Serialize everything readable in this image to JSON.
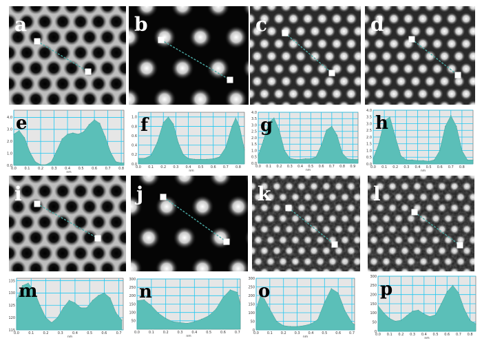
{
  "colors": {
    "plot_fill": "#5bbfb8",
    "plot_background": "#e6e6e6",
    "grid": "#1fc7f0",
    "image_marker": "#ffffff",
    "image_line": "#4aa9a4"
  },
  "image_panels": [
    {
      "label": "a",
      "pattern": "dark-pores-honeycomb"
    },
    {
      "label": "b",
      "pattern": "bright-spots-sparse"
    },
    {
      "label": "c",
      "pattern": "bright-spots-dense"
    },
    {
      "label": "d",
      "pattern": "bright-spots-dense"
    },
    {
      "label": "i",
      "pattern": "dark-pores-honeycomb"
    },
    {
      "label": "j",
      "pattern": "bright-spots-sparse"
    },
    {
      "label": "k",
      "pattern": "noisy-bright-spots"
    },
    {
      "label": "l",
      "pattern": "noisy-bright-spots"
    }
  ],
  "chart_data": [
    {
      "label": "e",
      "type": "area",
      "xlabel": "nm",
      "xticks": [
        "0.0",
        "0.1",
        "0.2",
        "0.3",
        "0.4",
        "0.5",
        "0.6",
        "0.7",
        "0.8"
      ],
      "yticks": [
        "0.0",
        "1.0",
        "2.0",
        "3.0",
        "4.0"
      ],
      "xlim": [
        0,
        0.82
      ],
      "ylim": [
        0,
        4.6
      ],
      "x": [
        0.0,
        0.04,
        0.08,
        0.12,
        0.16,
        0.2,
        0.24,
        0.28,
        0.32,
        0.36,
        0.4,
        0.44,
        0.48,
        0.52,
        0.56,
        0.6,
        0.64,
        0.68,
        0.72,
        0.76,
        0.8,
        0.82
      ],
      "y": [
        2.6,
        2.9,
        2.3,
        1.1,
        0.3,
        0.05,
        0.05,
        0.3,
        1.2,
        2.2,
        2.6,
        2.7,
        2.6,
        2.8,
        3.4,
        3.8,
        3.5,
        2.4,
        1.1,
        0.3,
        0.2,
        0.2
      ]
    },
    {
      "label": "f",
      "type": "area",
      "xlabel": "nm",
      "xticks": [
        "0.0",
        "0.1",
        "0.2",
        "0.3",
        "0.4",
        "0.5",
        "0.6",
        "0.7",
        "0.8"
      ],
      "yticks": [
        "0.0",
        "0.2",
        "0.4",
        "0.6",
        "0.8",
        "1.0"
      ],
      "xlim": [
        0,
        0.85
      ],
      "ylim": [
        0,
        1.1
      ],
      "x": [
        0.0,
        0.05,
        0.1,
        0.15,
        0.2,
        0.24,
        0.28,
        0.32,
        0.36,
        0.4,
        0.45,
        0.5,
        0.55,
        0.6,
        0.65,
        0.7,
        0.75,
        0.78,
        0.81,
        0.85
      ],
      "y": [
        0.12,
        0.12,
        0.18,
        0.45,
        0.88,
        1.0,
        0.85,
        0.45,
        0.2,
        0.12,
        0.1,
        0.1,
        0.1,
        0.11,
        0.15,
        0.35,
        0.8,
        0.98,
        0.8,
        0.3
      ]
    },
    {
      "label": "g",
      "type": "area",
      "xlabel": "nm",
      "xticks": [
        "0.0",
        "0.1",
        "0.2",
        "0.3",
        "0.4",
        "0.5",
        "0.6",
        "0.7",
        "0.8",
        "0.9"
      ],
      "yticks": [
        "0.0",
        "0.5",
        "1.0",
        "1.5",
        "2.0",
        "2.5",
        "3.0",
        "3.5",
        "4.0"
      ],
      "xlim": [
        0,
        0.95
      ],
      "ylim": [
        0,
        4.0
      ],
      "x": [
        0.0,
        0.05,
        0.1,
        0.15,
        0.2,
        0.25,
        0.3,
        0.35,
        0.4,
        0.45,
        0.5,
        0.55,
        0.6,
        0.65,
        0.7,
        0.75,
        0.8,
        0.85,
        0.9,
        0.95
      ],
      "y": [
        0.6,
        1.8,
        3.2,
        3.55,
        2.6,
        1.0,
        0.4,
        0.3,
        0.3,
        0.35,
        0.35,
        0.5,
        1.4,
        2.6,
        2.9,
        2.2,
        0.8,
        0.35,
        0.3,
        0.3
      ]
    },
    {
      "label": "h",
      "type": "area",
      "xlabel": "nm",
      "xticks": [
        "0.0",
        "0.1",
        "0.2",
        "0.3",
        "0.4",
        "0.5",
        "0.6",
        "0.7",
        "0.8"
      ],
      "yticks": [
        "0.0",
        "0.5",
        "1.0",
        "1.5",
        "2.0",
        "2.5",
        "3.0",
        "3.5",
        "4.0"
      ],
      "xlim": [
        0,
        0.9
      ],
      "ylim": [
        0,
        4.0
      ],
      "x": [
        0.0,
        0.05,
        0.1,
        0.15,
        0.2,
        0.25,
        0.3,
        0.35,
        0.4,
        0.45,
        0.5,
        0.55,
        0.6,
        0.65,
        0.7,
        0.75,
        0.8,
        0.85,
        0.9
      ],
      "y": [
        0.4,
        1.5,
        3.2,
        3.5,
        2.0,
        0.6,
        0.3,
        0.3,
        0.25,
        0.25,
        0.2,
        0.3,
        1.0,
        2.8,
        3.6,
        2.8,
        1.0,
        0.3,
        0.3
      ]
    },
    {
      "label": "m",
      "type": "area",
      "xlabel": "nm",
      "xticks": [
        "0.0",
        "0.1",
        "0.2",
        "0.3",
        "0.4",
        "0.5",
        "0.6",
        "0.7"
      ],
      "yticks": [
        "115",
        "120",
        "125",
        "130",
        "135"
      ],
      "xlim": [
        0,
        0.73
      ],
      "ylim": [
        115,
        136
      ],
      "x": [
        0.0,
        0.04,
        0.08,
        0.12,
        0.16,
        0.2,
        0.24,
        0.28,
        0.32,
        0.36,
        0.4,
        0.44,
        0.48,
        0.52,
        0.56,
        0.6,
        0.64,
        0.68,
        0.72
      ],
      "y": [
        127,
        133,
        134,
        131,
        125,
        120,
        118,
        120,
        124,
        127,
        126,
        124,
        124,
        127,
        129,
        130,
        128,
        122,
        119
      ]
    },
    {
      "label": "n",
      "type": "area",
      "xlabel": "nm",
      "xticks": [
        "0.0",
        "0.1",
        "0.2",
        "0.3",
        "0.4",
        "0.5",
        "0.6",
        "0.7"
      ],
      "yticks": [
        "50",
        "100",
        "150",
        "200",
        "250",
        "300"
      ],
      "xlim": [
        0,
        0.72
      ],
      "ylim": [
        0,
        300
      ],
      "x": [
        0.0,
        0.05,
        0.1,
        0.15,
        0.2,
        0.25,
        0.3,
        0.35,
        0.4,
        0.45,
        0.5,
        0.55,
        0.6,
        0.65,
        0.7,
        0.72
      ],
      "y": [
        170,
        175,
        140,
        95,
        65,
        45,
        40,
        35,
        45,
        60,
        80,
        120,
        190,
        235,
        220,
        150
      ]
    },
    {
      "label": "o",
      "type": "area",
      "xlabel": "nm",
      "xticks": [
        "0.0",
        "0.1",
        "0.2",
        "0.3",
        "0.4",
        "0.5",
        "0.6",
        "0.7"
      ],
      "yticks": [
        "0",
        "50",
        "100",
        "150",
        "200",
        "250",
        "300"
      ],
      "xlim": [
        0,
        0.72
      ],
      "ylim": [
        0,
        300
      ],
      "x": [
        0.0,
        0.03,
        0.06,
        0.1,
        0.15,
        0.2,
        0.25,
        0.3,
        0.35,
        0.4,
        0.45,
        0.5,
        0.55,
        0.6,
        0.65,
        0.7,
        0.72
      ],
      "y": [
        120,
        195,
        180,
        120,
        50,
        25,
        20,
        20,
        25,
        35,
        60,
        160,
        240,
        215,
        110,
        45,
        30
      ]
    },
    {
      "label": "p",
      "type": "area",
      "xlabel": "nm",
      "xticks": [
        "0.0",
        "0.1",
        "0.2",
        "0.3",
        "0.4",
        "0.5",
        "0.6",
        "0.7",
        "0.8"
      ],
      "yticks": [
        "0",
        "50",
        "100",
        "150",
        "200",
        "250",
        "300"
      ],
      "xlim": [
        0,
        0.85
      ],
      "ylim": [
        0,
        300
      ],
      "x": [
        0.0,
        0.05,
        0.1,
        0.15,
        0.2,
        0.25,
        0.3,
        0.35,
        0.4,
        0.45,
        0.5,
        0.55,
        0.6,
        0.65,
        0.7,
        0.75,
        0.8,
        0.85
      ],
      "y": [
        140,
        100,
        70,
        55,
        60,
        85,
        110,
        115,
        95,
        80,
        90,
        150,
        215,
        250,
        210,
        120,
        60,
        40
      ]
    }
  ]
}
